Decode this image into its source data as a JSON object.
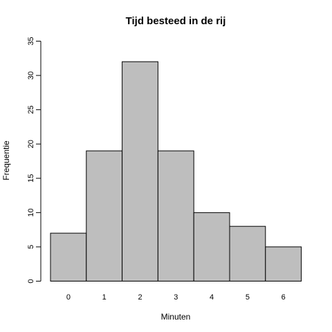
{
  "chart_data": {
    "type": "bar",
    "title": "Tijd besteed in de rij",
    "xlabel": "Minuten",
    "ylabel": "Frequentie",
    "categories": [
      "0",
      "1",
      "2",
      "3",
      "4",
      "5",
      "6"
    ],
    "values": [
      7,
      19,
      32,
      19,
      10,
      8,
      5
    ],
    "ylim": [
      0,
      35
    ],
    "yticks": [
      0,
      5,
      10,
      15,
      20,
      25,
      30,
      35
    ],
    "bar_color": "#bebebe",
    "grid": false
  }
}
